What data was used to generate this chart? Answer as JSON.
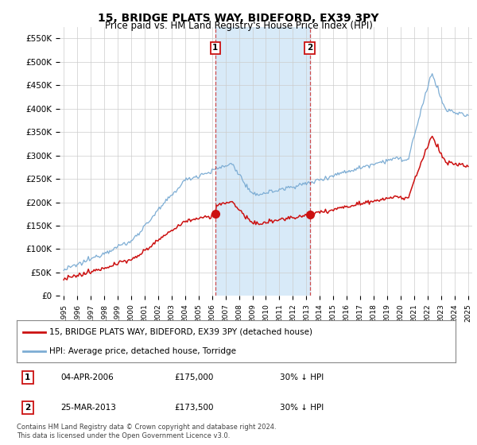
{
  "title": "15, BRIDGE PLATS WAY, BIDEFORD, EX39 3PY",
  "subtitle": "Price paid vs. HM Land Registry's House Price Index (HPI)",
  "legend_entry1": "15, BRIDGE PLATS WAY, BIDEFORD, EX39 3PY (detached house)",
  "legend_entry2": "HPI: Average price, detached house, Torridge",
  "table_rows": [
    {
      "num": "1",
      "date": "04-APR-2006",
      "price": "£175,000",
      "hpi": "30% ↓ HPI"
    },
    {
      "num": "2",
      "date": "25-MAR-2013",
      "price": "£173,500",
      "hpi": "30% ↓ HPI"
    }
  ],
  "footer": "Contains HM Land Registry data © Crown copyright and database right 2024.\nThis data is licensed under the Open Government Licence v3.0.",
  "sale1_year": 2006.25,
  "sale2_year": 2013.25,
  "sale1_price": 175000,
  "sale2_price": 173500,
  "hpi_color": "#7dadd4",
  "price_color": "#cc1111",
  "shade_color": "#d8eaf8",
  "marker_box_color": "#cc1111",
  "ylim_max": 575000,
  "yticks": [
    0,
    50000,
    100000,
    150000,
    200000,
    250000,
    300000,
    350000,
    400000,
    450000,
    500000,
    550000
  ],
  "ytick_labels": [
    "£0",
    "£50K",
    "£100K",
    "£150K",
    "£200K",
    "£250K",
    "£300K",
    "£350K",
    "£400K",
    "£450K",
    "£500K",
    "£550K"
  ],
  "xmin": 1994.7,
  "xmax": 2025.3,
  "grid_color": "#cccccc",
  "bg_color": "#ffffff"
}
